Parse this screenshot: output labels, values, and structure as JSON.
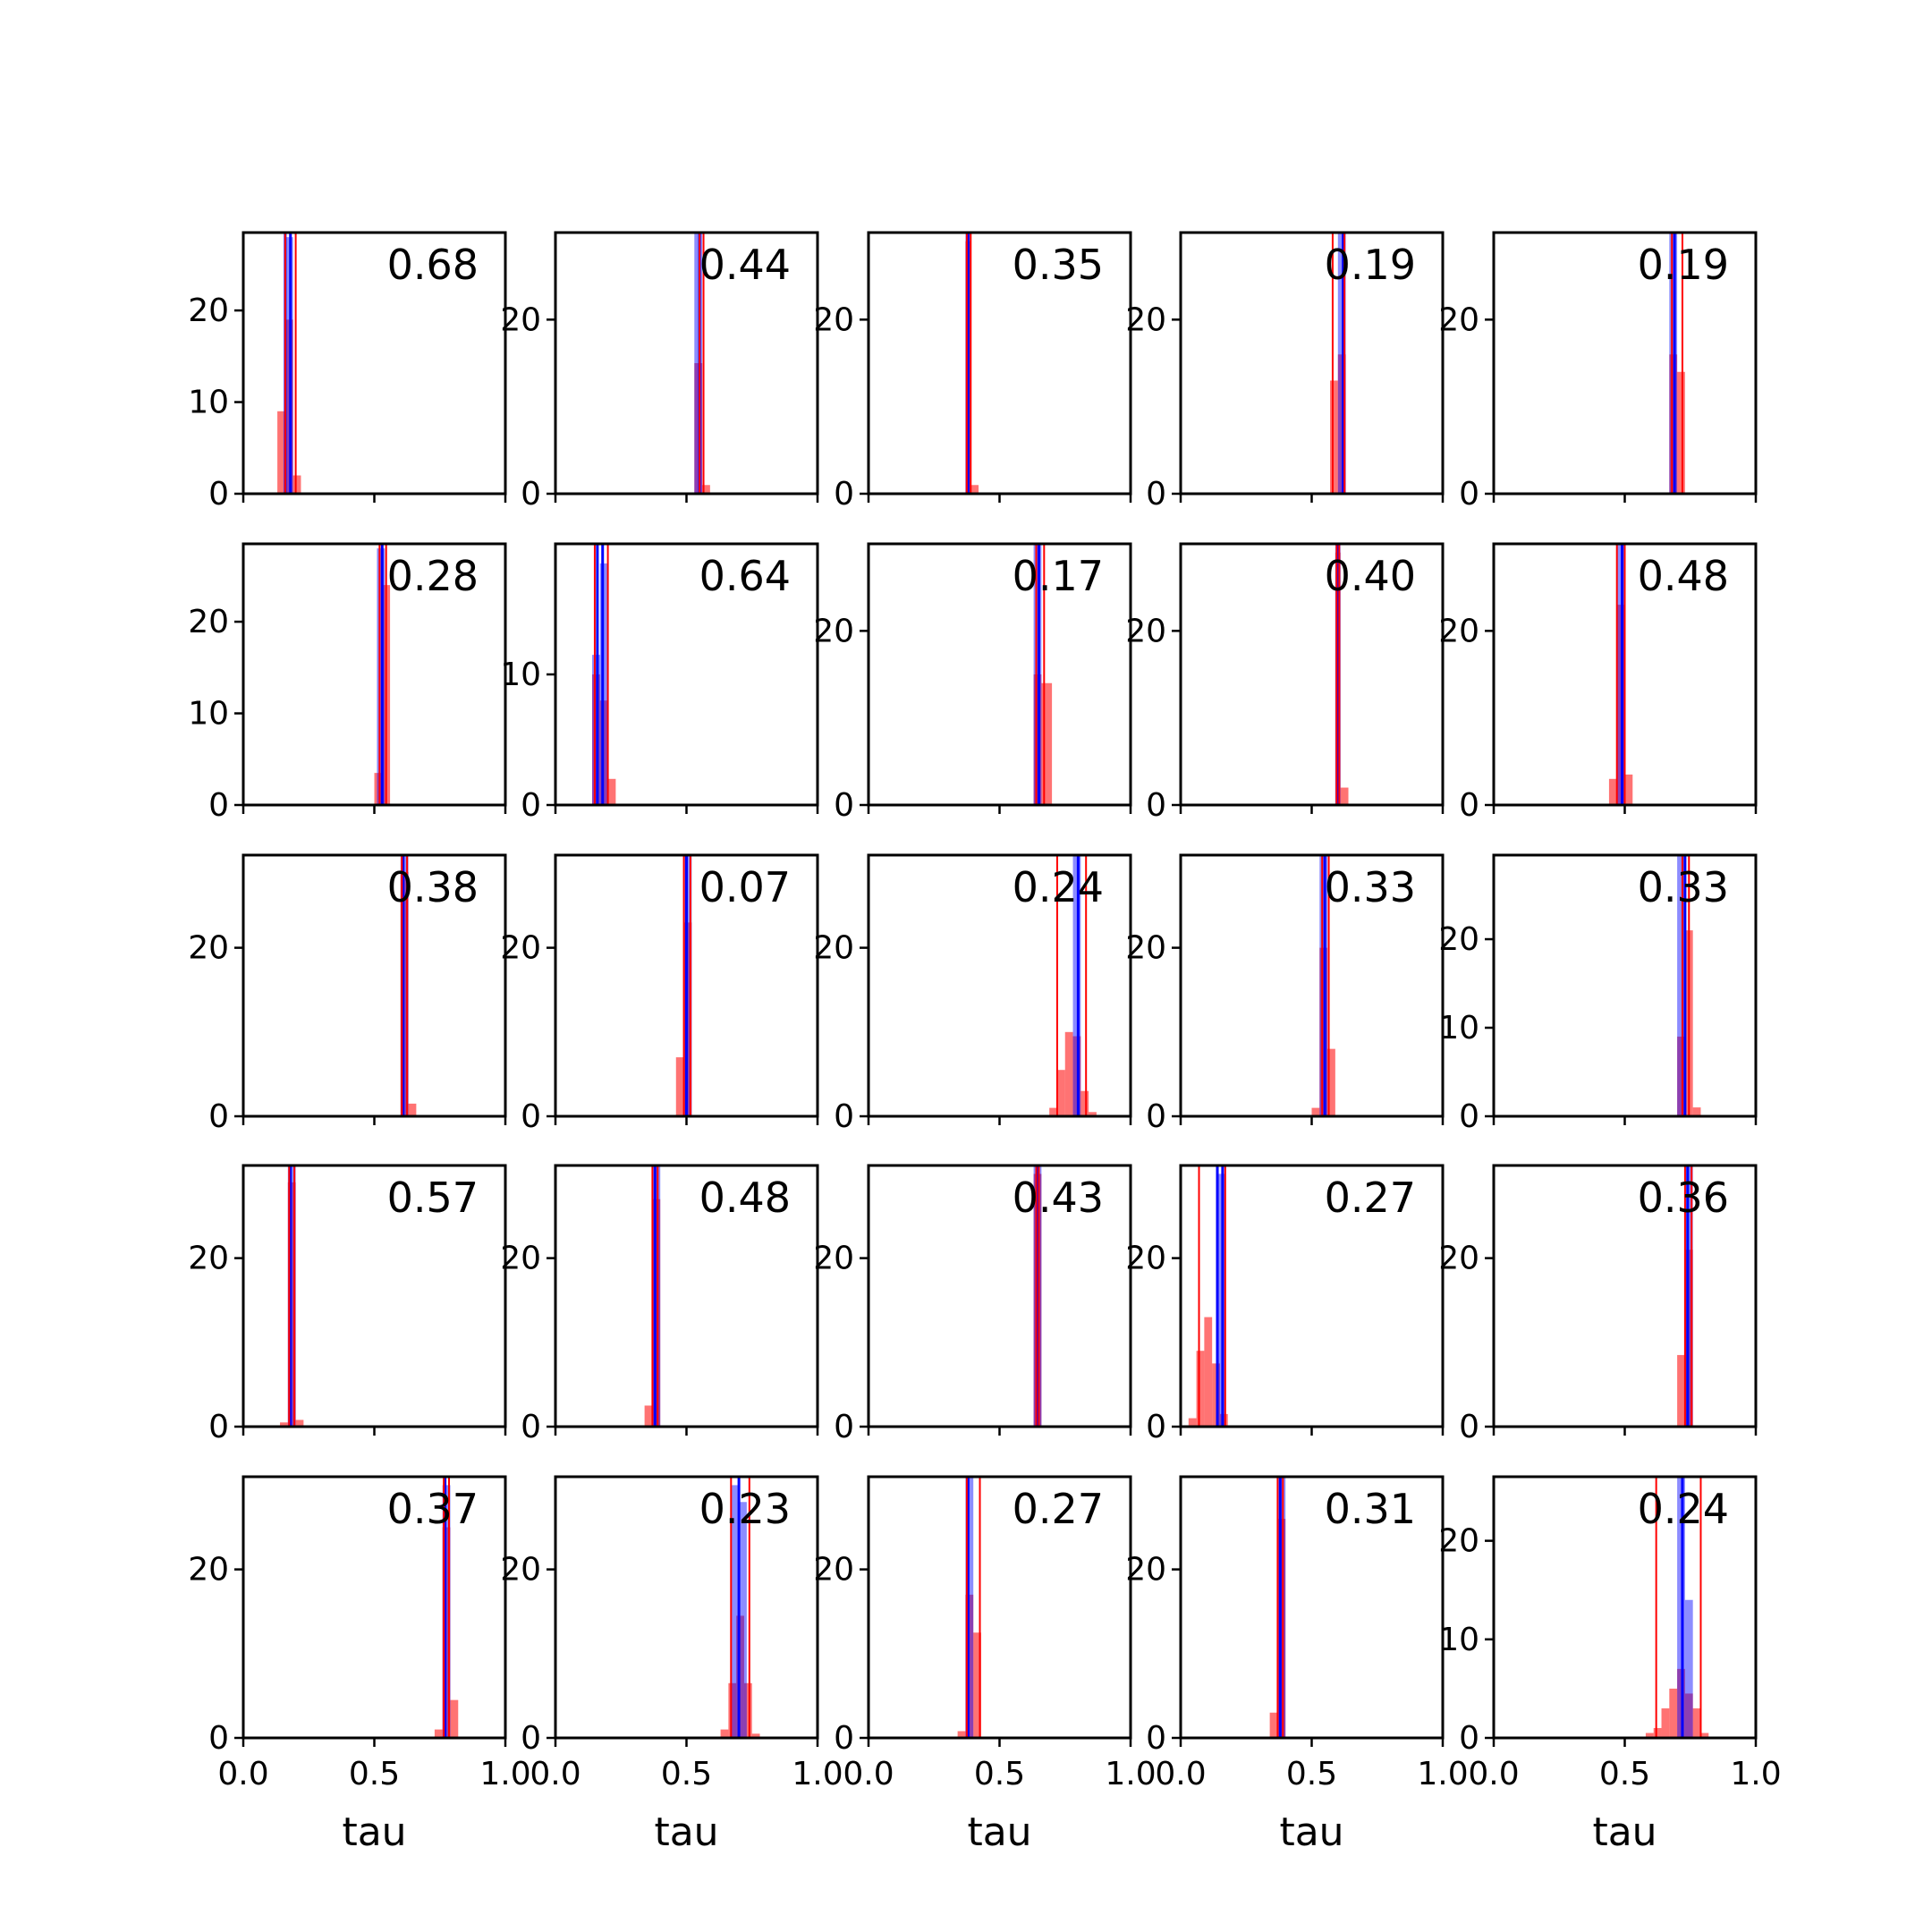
{
  "colors": {
    "blue": "#0000ff",
    "red": "#ff0000",
    "axes": "#000000"
  },
  "chart_data": {
    "type": "histogram-grid",
    "rows": 5,
    "cols": 5,
    "xlim": [
      0.0,
      1.0
    ],
    "xticks": [
      0.0,
      0.5,
      1.0
    ],
    "xtick_labels": [
      "0.0",
      "0.5",
      "1.0"
    ],
    "xlabel": "tau",
    "panels": [
      {
        "annotation": "0.68",
        "ylim": [
          0,
          28.5
        ],
        "yticks": [
          0,
          10,
          20
        ],
        "blue_bars": [
          {
            "x0": 0.16,
            "x1": 0.19,
            "h": 28
          }
        ],
        "red_bars": [
          {
            "x0": 0.13,
            "x1": 0.16,
            "h": 9
          },
          {
            "x0": 0.16,
            "x1": 0.19,
            "h": 19
          },
          {
            "x0": 0.19,
            "x1": 0.22,
            "h": 2
          }
        ],
        "blue_lines": [
          0.16,
          0.18
        ],
        "red_lines": [
          0.16,
          0.2
        ]
      },
      {
        "annotation": "0.44",
        "ylim": [
          0,
          30
        ],
        "yticks": [
          0,
          20
        ],
        "blue_bars": [
          {
            "x0": 0.53,
            "x1": 0.56,
            "h": 30
          }
        ],
        "red_bars": [
          {
            "x0": 0.53,
            "x1": 0.56,
            "h": 15
          },
          {
            "x0": 0.56,
            "x1": 0.59,
            "h": 1
          }
        ],
        "blue_lines": [
          0.55
        ],
        "red_lines": [
          0.55,
          0.565
        ]
      },
      {
        "annotation": "0.35",
        "ylim": [
          0,
          30
        ],
        "yticks": [
          0,
          20
        ],
        "blue_bars": [
          {
            "x0": 0.37,
            "x1": 0.39,
            "h": 30
          }
        ],
        "red_bars": [
          {
            "x0": 0.37,
            "x1": 0.39,
            "h": 29
          },
          {
            "x0": 0.39,
            "x1": 0.42,
            "h": 1
          }
        ],
        "blue_lines": [
          0.38
        ],
        "red_lines": [
          0.375,
          0.39
        ]
      },
      {
        "annotation": "0.19",
        "ylim": [
          0,
          30
        ],
        "yticks": [
          0,
          20
        ],
        "blue_bars": [
          {
            "x0": 0.6,
            "x1": 0.63,
            "h": 30
          }
        ],
        "red_bars": [
          {
            "x0": 0.57,
            "x1": 0.6,
            "h": 13
          },
          {
            "x0": 0.6,
            "x1": 0.63,
            "h": 16
          }
        ],
        "blue_lines": [
          0.62
        ],
        "red_lines": [
          0.58,
          0.625
        ]
      },
      {
        "annotation": "0.19",
        "ylim": [
          0,
          30
        ],
        "yticks": [
          0,
          20
        ],
        "blue_bars": [
          {
            "x0": 0.67,
            "x1": 0.7,
            "h": 30
          }
        ],
        "red_bars": [
          {
            "x0": 0.67,
            "x1": 0.7,
            "h": 16
          },
          {
            "x0": 0.7,
            "x1": 0.73,
            "h": 14
          }
        ],
        "blue_lines": [
          0.69
        ],
        "red_lines": [
          0.68,
          0.72
        ]
      },
      {
        "annotation": "0.28",
        "ylim": [
          0,
          28.5
        ],
        "yticks": [
          0,
          10,
          20
        ],
        "blue_bars": [
          {
            "x0": 0.51,
            "x1": 0.54,
            "h": 28
          }
        ],
        "red_bars": [
          {
            "x0": 0.5,
            "x1": 0.53,
            "h": 3.5
          },
          {
            "x0": 0.53,
            "x1": 0.56,
            "h": 24
          }
        ],
        "blue_lines": [
          0.53
        ],
        "red_lines": [
          0.52,
          0.545
        ]
      },
      {
        "annotation": "0.64",
        "ylim": [
          0,
          20
        ],
        "yticks": [
          0,
          10
        ],
        "blue_bars": [
          {
            "x0": 0.14,
            "x1": 0.17,
            "h": 11.5
          },
          {
            "x0": 0.17,
            "x1": 0.2,
            "h": 18.5
          }
        ],
        "red_bars": [
          {
            "x0": 0.14,
            "x1": 0.17,
            "h": 10
          },
          {
            "x0": 0.17,
            "x1": 0.2,
            "h": 8
          },
          {
            "x0": 0.2,
            "x1": 0.23,
            "h": 2
          }
        ],
        "blue_lines": [
          0.16,
          0.18
        ],
        "red_lines": [
          0.15,
          0.2
        ]
      },
      {
        "annotation": "0.17",
        "ylim": [
          0,
          30
        ],
        "yticks": [
          0,
          20
        ],
        "blue_bars": [
          {
            "x0": 0.63,
            "x1": 0.66,
            "h": 30
          }
        ],
        "red_bars": [
          {
            "x0": 0.63,
            "x1": 0.66,
            "h": 15
          },
          {
            "x0": 0.66,
            "x1": 0.7,
            "h": 14
          }
        ],
        "blue_lines": [
          0.65
        ],
        "red_lines": [
          0.64,
          0.67
        ]
      },
      {
        "annotation": "0.40",
        "ylim": [
          0,
          30
        ],
        "yticks": [
          0,
          20
        ],
        "blue_bars": [
          {
            "x0": 0.59,
            "x1": 0.61,
            "h": 30
          }
        ],
        "red_bars": [
          {
            "x0": 0.59,
            "x1": 0.61,
            "h": 29
          },
          {
            "x0": 0.61,
            "x1": 0.64,
            "h": 2
          }
        ],
        "blue_lines": [
          0.6
        ],
        "red_lines": [
          0.595,
          0.605
        ]
      },
      {
        "annotation": "0.48",
        "ylim": [
          0,
          30
        ],
        "yticks": [
          0,
          20
        ],
        "blue_bars": [
          {
            "x0": 0.47,
            "x1": 0.5,
            "h": 30
          }
        ],
        "red_bars": [
          {
            "x0": 0.44,
            "x1": 0.47,
            "h": 3
          },
          {
            "x0": 0.47,
            "x1": 0.5,
            "h": 23
          },
          {
            "x0": 0.5,
            "x1": 0.53,
            "h": 3.5
          }
        ],
        "blue_lines": [
          0.49
        ],
        "red_lines": [
          0.47,
          0.5
        ]
      },
      {
        "annotation": "0.38",
        "ylim": [
          0,
          31
        ],
        "yticks": [
          0,
          20
        ],
        "blue_bars": [
          {
            "x0": 0.6,
            "x1": 0.63,
            "h": 31
          }
        ],
        "red_bars": [
          {
            "x0": 0.6,
            "x1": 0.63,
            "h": 29
          },
          {
            "x0": 0.63,
            "x1": 0.66,
            "h": 1.5
          }
        ],
        "blue_lines": [
          0.61
        ],
        "red_lines": [
          0.605,
          0.625
        ]
      },
      {
        "annotation": "0.07",
        "ylim": [
          0,
          31
        ],
        "yticks": [
          0,
          20
        ],
        "blue_bars": [
          {
            "x0": 0.49,
            "x1": 0.52,
            "h": 31
          }
        ],
        "red_bars": [
          {
            "x0": 0.46,
            "x1": 0.49,
            "h": 7
          },
          {
            "x0": 0.49,
            "x1": 0.52,
            "h": 23
          }
        ],
        "blue_lines": [
          0.5
        ],
        "red_lines": [
          0.49,
          0.515
        ]
      },
      {
        "annotation": "0.24",
        "ylim": [
          0,
          31
        ],
        "yticks": [
          0,
          20
        ],
        "blue_bars": [
          {
            "x0": 0.78,
            "x1": 0.81,
            "h": 31
          }
        ],
        "red_bars": [
          {
            "x0": 0.69,
            "x1": 0.72,
            "h": 1
          },
          {
            "x0": 0.72,
            "x1": 0.75,
            "h": 5.5
          },
          {
            "x0": 0.75,
            "x1": 0.78,
            "h": 10
          },
          {
            "x0": 0.78,
            "x1": 0.81,
            "h": 9.5
          },
          {
            "x0": 0.81,
            "x1": 0.84,
            "h": 3
          },
          {
            "x0": 0.84,
            "x1": 0.87,
            "h": 0.5
          }
        ],
        "blue_lines": [
          0.8
        ],
        "red_lines": [
          0.72,
          0.83
        ]
      },
      {
        "annotation": "0.33",
        "ylim": [
          0,
          31
        ],
        "yticks": [
          0,
          20
        ],
        "blue_bars": [
          {
            "x0": 0.53,
            "x1": 0.56,
            "h": 31
          }
        ],
        "red_bars": [
          {
            "x0": 0.5,
            "x1": 0.53,
            "h": 1
          },
          {
            "x0": 0.53,
            "x1": 0.56,
            "h": 20
          },
          {
            "x0": 0.56,
            "x1": 0.59,
            "h": 8
          }
        ],
        "blue_lines": [
          0.55
        ],
        "red_lines": [
          0.54,
          0.565
        ]
      },
      {
        "annotation": "0.33",
        "ylim": [
          0,
          29.5
        ],
        "yticks": [
          0,
          10,
          20
        ],
        "blue_bars": [
          {
            "x0": 0.7,
            "x1": 0.73,
            "h": 29.5
          }
        ],
        "red_bars": [
          {
            "x0": 0.7,
            "x1": 0.73,
            "h": 9
          },
          {
            "x0": 0.73,
            "x1": 0.76,
            "h": 21
          },
          {
            "x0": 0.76,
            "x1": 0.79,
            "h": 1
          }
        ],
        "blue_lines": [
          0.73
        ],
        "red_lines": [
          0.72,
          0.745
        ]
      },
      {
        "annotation": "0.57",
        "ylim": [
          0,
          31
        ],
        "yticks": [
          0,
          20
        ],
        "blue_bars": [
          {
            "x0": 0.17,
            "x1": 0.2,
            "h": 31
          }
        ],
        "red_bars": [
          {
            "x0": 0.14,
            "x1": 0.17,
            "h": 0.5
          },
          {
            "x0": 0.17,
            "x1": 0.2,
            "h": 29
          },
          {
            "x0": 0.2,
            "x1": 0.23,
            "h": 0.8
          }
        ],
        "blue_lines": [
          0.18
        ],
        "red_lines": [
          0.175,
          0.195
        ]
      },
      {
        "annotation": "0.48",
        "ylim": [
          0,
          31
        ],
        "yticks": [
          0,
          20
        ],
        "blue_bars": [
          {
            "x0": 0.37,
            "x1": 0.4,
            "h": 31
          }
        ],
        "red_bars": [
          {
            "x0": 0.34,
            "x1": 0.37,
            "h": 2.5
          },
          {
            "x0": 0.37,
            "x1": 0.4,
            "h": 27
          }
        ],
        "blue_lines": [
          0.38
        ],
        "red_lines": [
          0.37,
          0.39
        ]
      },
      {
        "annotation": "0.43",
        "ylim": [
          0,
          31
        ],
        "yticks": [
          0,
          20
        ],
        "blue_bars": [
          {
            "x0": 0.63,
            "x1": 0.66,
            "h": 31
          }
        ],
        "red_bars": [
          {
            "x0": 0.63,
            "x1": 0.66,
            "h": 30
          }
        ],
        "blue_lines": [
          0.645
        ],
        "red_lines": [
          0.64,
          0.65
        ]
      },
      {
        "annotation": "0.27",
        "ylim": [
          0,
          31
        ],
        "yticks": [
          0,
          20
        ],
        "blue_bars": [
          {
            "x0": 0.14,
            "x1": 0.17,
            "h": 30
          }
        ],
        "red_bars": [
          {
            "x0": 0.03,
            "x1": 0.06,
            "h": 1
          },
          {
            "x0": 0.06,
            "x1": 0.09,
            "h": 9
          },
          {
            "x0": 0.09,
            "x1": 0.12,
            "h": 13
          },
          {
            "x0": 0.12,
            "x1": 0.15,
            "h": 7.5
          },
          {
            "x0": 0.15,
            "x1": 0.18,
            "h": 1.5
          }
        ],
        "blue_lines": [
          0.14,
          0.16
        ],
        "red_lines": [
          0.07,
          0.17
        ]
      },
      {
        "annotation": "0.36",
        "ylim": [
          0,
          31
        ],
        "yticks": [
          0,
          20
        ],
        "blue_bars": [
          {
            "x0": 0.73,
            "x1": 0.76,
            "h": 31
          }
        ],
        "red_bars": [
          {
            "x0": 0.7,
            "x1": 0.73,
            "h": 8.5
          },
          {
            "x0": 0.73,
            "x1": 0.76,
            "h": 21
          }
        ],
        "blue_lines": [
          0.74
        ],
        "red_lines": [
          0.73,
          0.755
        ]
      },
      {
        "annotation": "0.37",
        "ylim": [
          0,
          31
        ],
        "yticks": [
          0,
          20
        ],
        "blue_bars": [
          {
            "x0": 0.76,
            "x1": 0.79,
            "h": 30
          }
        ],
        "red_bars": [
          {
            "x0": 0.73,
            "x1": 0.76,
            "h": 1
          },
          {
            "x0": 0.76,
            "x1": 0.79,
            "h": 25
          },
          {
            "x0": 0.79,
            "x1": 0.82,
            "h": 4.5
          }
        ],
        "blue_lines": [
          0.77
        ],
        "red_lines": [
          0.765,
          0.785
        ]
      },
      {
        "annotation": "0.23",
        "ylim": [
          0,
          31
        ],
        "yticks": [
          0,
          20
        ],
        "blue_bars": [
          {
            "x0": 0.67,
            "x1": 0.7,
            "h": 30
          },
          {
            "x0": 0.7,
            "x1": 0.73,
            "h": 28
          }
        ],
        "red_bars": [
          {
            "x0": 0.63,
            "x1": 0.66,
            "h": 1
          },
          {
            "x0": 0.66,
            "x1": 0.69,
            "h": 6.5
          },
          {
            "x0": 0.69,
            "x1": 0.72,
            "h": 14.5
          },
          {
            "x0": 0.72,
            "x1": 0.75,
            "h": 6.5
          },
          {
            "x0": 0.75,
            "x1": 0.78,
            "h": 0.5
          }
        ],
        "blue_lines": [
          0.7
        ],
        "red_lines": [
          0.67,
          0.74
        ]
      },
      {
        "annotation": "0.27",
        "ylim": [
          0,
          31
        ],
        "yticks": [
          0,
          20
        ],
        "blue_bars": [
          {
            "x0": 0.37,
            "x1": 0.4,
            "h": 31
          }
        ],
        "red_bars": [
          {
            "x0": 0.34,
            "x1": 0.37,
            "h": 0.8
          },
          {
            "x0": 0.37,
            "x1": 0.4,
            "h": 17
          },
          {
            "x0": 0.4,
            "x1": 0.43,
            "h": 12.5
          }
        ],
        "blue_lines": [
          0.38
        ],
        "red_lines": [
          0.375,
          0.425
        ]
      },
      {
        "annotation": "0.31",
        "ylim": [
          0,
          31
        ],
        "yticks": [
          0,
          20
        ],
        "blue_bars": [
          {
            "x0": 0.37,
            "x1": 0.4,
            "h": 31
          }
        ],
        "red_bars": [
          {
            "x0": 0.34,
            "x1": 0.37,
            "h": 3
          },
          {
            "x0": 0.37,
            "x1": 0.4,
            "h": 26
          }
        ],
        "blue_lines": [
          0.38
        ],
        "red_lines": [
          0.37,
          0.39
        ]
      },
      {
        "annotation": "0.24",
        "ylim": [
          0,
          26.5
        ],
        "yticks": [
          0,
          10,
          20
        ],
        "blue_bars": [
          {
            "x0": 0.7,
            "x1": 0.73,
            "h": 26.5
          },
          {
            "x0": 0.73,
            "x1": 0.76,
            "h": 14
          }
        ],
        "red_bars": [
          {
            "x0": 0.58,
            "x1": 0.61,
            "h": 0.5
          },
          {
            "x0": 0.61,
            "x1": 0.64,
            "h": 1
          },
          {
            "x0": 0.64,
            "x1": 0.67,
            "h": 3
          },
          {
            "x0": 0.67,
            "x1": 0.7,
            "h": 5
          },
          {
            "x0": 0.7,
            "x1": 0.73,
            "h": 7
          },
          {
            "x0": 0.73,
            "x1": 0.76,
            "h": 4.5
          },
          {
            "x0": 0.76,
            "x1": 0.79,
            "h": 3
          },
          {
            "x0": 0.79,
            "x1": 0.82,
            "h": 0.5
          }
        ],
        "blue_lines": [
          0.72
        ],
        "red_lines": [
          0.62,
          0.79
        ]
      }
    ]
  }
}
